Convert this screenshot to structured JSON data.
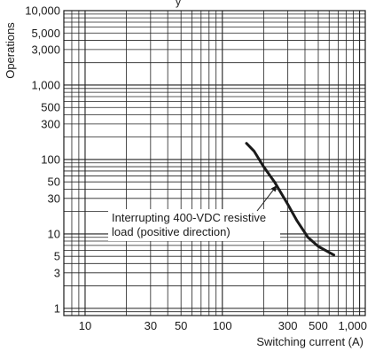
{
  "chart_data": {
    "type": "line",
    "title": "",
    "title_fragment": "y",
    "xlabel": "Switching current (A)",
    "ylabel": "Operations",
    "x_scale": "log",
    "y_scale": "log",
    "xlim": [
      7,
      1100
    ],
    "ylim": [
      0.8,
      10000
    ],
    "grid": true,
    "x_ticks": [
      10,
      30,
      50,
      100,
      300,
      500,
      1000
    ],
    "x_tick_labels": [
      "10",
      "30",
      "50",
      "100",
      "300",
      "500",
      "1,000"
    ],
    "y_ticks": [
      1,
      3,
      5,
      10,
      30,
      50,
      100,
      300,
      500,
      1000,
      3000,
      5000,
      10000
    ],
    "y_tick_labels": [
      "1",
      "3",
      "5",
      "10",
      "30",
      "50",
      "100",
      "300",
      "500",
      "1,000",
      "3,000",
      "5,000",
      "10,000"
    ],
    "series": [
      {
        "name": "",
        "x": [
          150,
          170,
          200,
          240,
          300,
          350,
          420,
          500,
          650
        ],
        "y": [
          165,
          130,
          80,
          50,
          25,
          15,
          9,
          6.8,
          5.2
        ]
      }
    ],
    "annotation": {
      "lines": [
        "Interrupting 400-VDC resistive",
        "load (positive direction)"
      ],
      "arrow_to": {
        "x": 250,
        "y": 45
      }
    },
    "line_color": "#1a1a1a",
    "grid_color": "#222222"
  }
}
